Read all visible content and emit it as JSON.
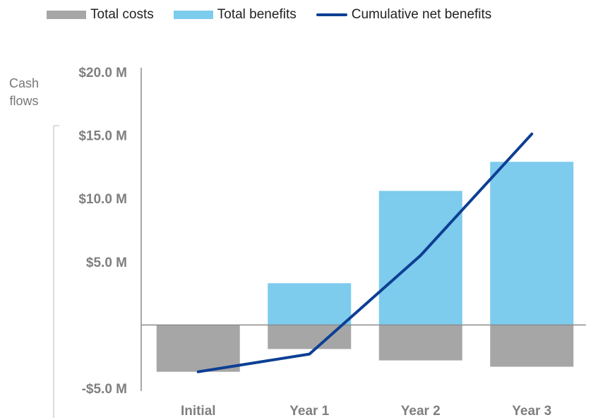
{
  "chart_data": {
    "type": "bar",
    "ylabel": "Cash flows",
    "categories": [
      "Initial",
      "Year 1",
      "Year 2",
      "Year 3"
    ],
    "series": [
      {
        "name": "Total costs",
        "kind": "bar",
        "color": "#a6a6a6",
        "values": [
          -3.7,
          -1.9,
          -2.8,
          -3.3
        ]
      },
      {
        "name": "Total benefits",
        "kind": "bar",
        "color": "#7dcbed",
        "values": [
          0,
          3.3,
          10.6,
          12.9
        ]
      },
      {
        "name": "Cumulative net benefits",
        "kind": "line",
        "color": "#0d3f94",
        "values": [
          -3.7,
          -2.3,
          5.5,
          15.1
        ]
      }
    ],
    "ylim": [
      -5,
      20
    ],
    "yticks": [
      -5,
      5,
      10,
      15,
      20
    ],
    "ytick_labels": [
      "-$5.0 M",
      "$5.0 M",
      "$10.0 M",
      "$15.0 M",
      "$20.0 M"
    ],
    "legend_position": "top",
    "grid": false
  }
}
